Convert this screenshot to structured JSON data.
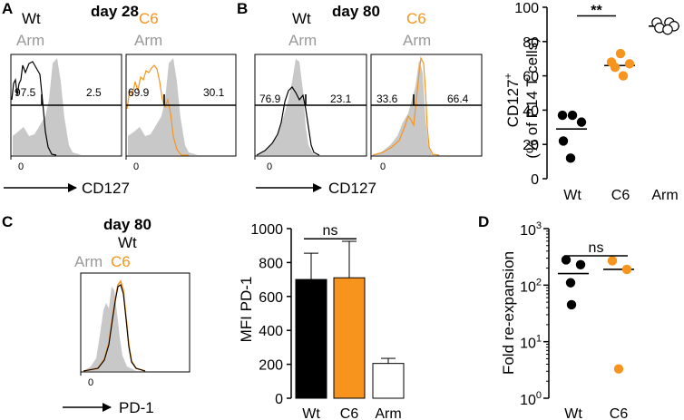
{
  "colors": {
    "wt": "#000000",
    "c6": "#f7941d",
    "arm": "#c8c8c8",
    "arm_text": "#9a9a9a"
  },
  "panels": {
    "A": {
      "letter": "A",
      "day": "day 28",
      "left_label": "Wt",
      "right_label": "C6",
      "ref_label": "Arm",
      "xlabel": "CD127",
      "zero": "0",
      "hist_left": {
        "lo": "97.5",
        "hi": "2.5"
      },
      "hist_right": {
        "lo": "69.9",
        "hi": "30.1"
      }
    },
    "B": {
      "letter": "B",
      "day": "day 80",
      "left_label": "Wt",
      "right_label": "C6",
      "ref_label": "Arm",
      "xlabel": "CD127",
      "zero": "0",
      "hist_left": {
        "lo": "76.9",
        "hi": "23.1"
      },
      "hist_right": {
        "lo": "33.6",
        "hi": "66.4"
      }
    },
    "C": {
      "letter": "C",
      "day": "day 80",
      "top_label": "Wt",
      "ref_label": "Arm",
      "c6_label": "C6",
      "xlabel": "PD-1",
      "zero": "0"
    },
    "D": {
      "letter": "D"
    }
  },
  "chart_data": [
    {
      "id": "cd127-scatter",
      "type": "scatter",
      "ylabel_line1": "CD127",
      "ylabel_sup": "+",
      "ylabel_line2": "(% of P14 T cells)",
      "ylim": [
        0,
        100
      ],
      "yticks": [
        0,
        20,
        40,
        60,
        80,
        100
      ],
      "categories": [
        "Wt",
        "C6",
        "Arm"
      ],
      "series": [
        {
          "name": "Wt",
          "points": [
            37,
            37,
            33,
            22,
            12
          ],
          "mean": 29
        },
        {
          "name": "C6",
          "points": [
            73,
            68,
            67,
            65,
            60
          ],
          "mean": 66
        },
        {
          "name": "Arm",
          "points": [
            91,
            91,
            89,
            88,
            87
          ],
          "mean": 89
        }
      ],
      "significance": {
        "label": "**",
        "between": [
          "Wt",
          "C6"
        ],
        "y": 95
      }
    },
    {
      "id": "pd1-bar",
      "type": "bar",
      "ylabel": "MFI PD-1",
      "ylim": [
        0,
        1000
      ],
      "yticks": [
        0,
        200,
        400,
        600,
        800,
        1000
      ],
      "categories": [
        "Wt",
        "C6",
        "Arm"
      ],
      "values": [
        700,
        710,
        205
      ],
      "errors": [
        155,
        215,
        30
      ],
      "significance": {
        "label": "ns",
        "between": [
          "Wt",
          "C6"
        ],
        "y": 940
      }
    },
    {
      "id": "fold-reexpansion",
      "type": "scatter",
      "scale": "log",
      "ylabel": "Fold re-expansion",
      "ylim": [
        1,
        1000
      ],
      "yticks_base": "10",
      "yticks_exp": [
        "0",
        "1",
        "2",
        "3"
      ],
      "categories": [
        "Wt",
        "C6"
      ],
      "series": [
        {
          "name": "Wt",
          "points": [
            280,
            230,
            110,
            45
          ],
          "median": 160
        },
        {
          "name": "C6",
          "points": [
            270,
            190,
            3.3
          ],
          "median": 190
        }
      ],
      "significance": {
        "label": "ns",
        "between": [
          "Wt",
          "C6"
        ],
        "y": 330
      }
    }
  ]
}
